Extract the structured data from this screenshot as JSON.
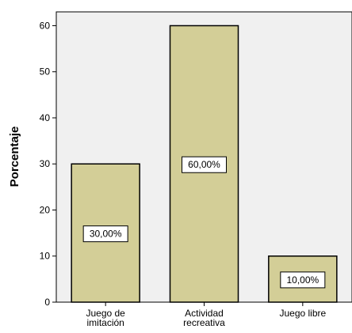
{
  "chart_data": {
    "type": "bar",
    "title": "",
    "xlabel": "",
    "ylabel": "Porcentaje",
    "ylim": [
      0,
      63
    ],
    "yticks": [
      0,
      10,
      20,
      30,
      40,
      50,
      60
    ],
    "categories": [
      [
        "Juego de",
        "imitación"
      ],
      [
        "Actividad",
        "recreativa"
      ],
      [
        "Juego libre"
      ]
    ],
    "values": [
      30,
      60,
      10
    ],
    "data_labels": [
      "30,00%",
      "60,00%",
      "10,00%"
    ],
    "grid": false,
    "colors": {
      "plot_background": "#f0f0f0",
      "bar_fill": "#d3ce97",
      "bar_stroke": "#000000",
      "label_box_fill": "#ffffff"
    }
  }
}
